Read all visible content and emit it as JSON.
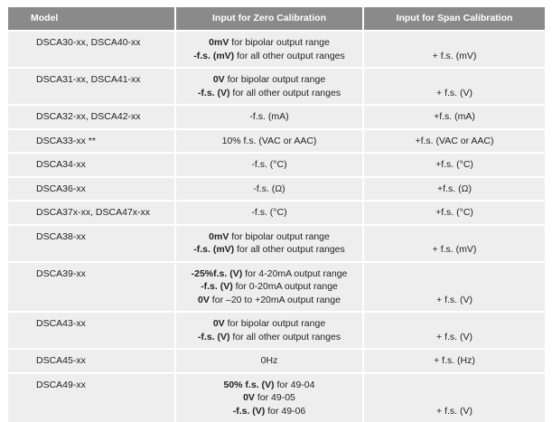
{
  "headers": {
    "model": "Model",
    "zero": "Input for Zero Calibration",
    "span": "Input for Span Calibration"
  },
  "rows": [
    {
      "model": "DSCA30-xx,  DSCA40-xx",
      "zero": [
        {
          "bold": "0mV",
          "rest": " for bipolar output range"
        },
        {
          "bold": "-f.s. (mV)",
          "rest": " for all other output ranges"
        }
      ],
      "span": "+ f.s. (mV)"
    },
    {
      "model": "DSCA31-xx,  DSCA41-xx",
      "zero": [
        {
          "bold": "0V",
          "rest": " for bipolar output range"
        },
        {
          "bold": "-f.s. (V)",
          "rest": " for all other output ranges"
        }
      ],
      "span": "+ f.s. (V)"
    },
    {
      "model": "DSCA32-xx,  DSCA42-xx",
      "zero": [
        {
          "bold": "",
          "rest": "-f.s. (mA)"
        }
      ],
      "span": "+f.s. (mA)"
    },
    {
      "model": "DSCA33-xx  **",
      "zero": [
        {
          "bold": "",
          "rest": "10% f.s. (VAC or AAC)"
        }
      ],
      "span": "+f.s. (VAC or AAC)"
    },
    {
      "model": "DSCA34-xx",
      "zero": [
        {
          "bold": "",
          "rest": "-f.s. (°C)"
        }
      ],
      "span": "+f.s. (°C)"
    },
    {
      "model": "DSCA36-xx",
      "zero": [
        {
          "bold": "",
          "rest": "-f.s. (Ω)"
        }
      ],
      "span": "+f.s. (Ω)"
    },
    {
      "model": "DSCA37x-xx,  DSCA47x-xx",
      "zero": [
        {
          "bold": "",
          "rest": "-f.s. (°C)"
        }
      ],
      "span": "+f.s. (°C)"
    },
    {
      "model": "DSCA38-xx",
      "zero": [
        {
          "bold": "0mV",
          "rest": " for bipolar output range"
        },
        {
          "bold": "-f.s. (mV)",
          "rest": " for all other output ranges"
        }
      ],
      "span": "+ f.s. (mV)"
    },
    {
      "model": "DSCA39-xx",
      "zero": [
        {
          "bold": "-25%f.s. (V)",
          "rest": " for 4-20mA output range"
        },
        {
          "bold": "-f.s. (V)",
          "rest": " for 0-20mA output range"
        },
        {
          "bold": "0V",
          "rest": " for –20 to +20mA output range"
        }
      ],
      "span": "+ f.s. (V)"
    },
    {
      "model": "DSCA43-xx",
      "zero": [
        {
          "bold": "0V",
          "rest": " for bipolar output range"
        },
        {
          "bold": "-f.s. (V)",
          "rest": " for all other output ranges"
        }
      ],
      "span": "+ f.s. (V)"
    },
    {
      "model": "DSCA45-xx",
      "zero": [
        {
          "bold": "",
          "rest": "0Hz"
        }
      ],
      "span": "+ f.s. (Hz)"
    },
    {
      "model": "DSCA49-xx",
      "zero": [
        {
          "bold": "50% f.s. (V)",
          "rest": " for 49-04"
        },
        {
          "bold": "0V",
          "rest": " for 49-05"
        },
        {
          "bold": "-f.s. (V)",
          "rest": " for 49-06"
        }
      ],
      "span": "+ f.s. (V)"
    }
  ]
}
